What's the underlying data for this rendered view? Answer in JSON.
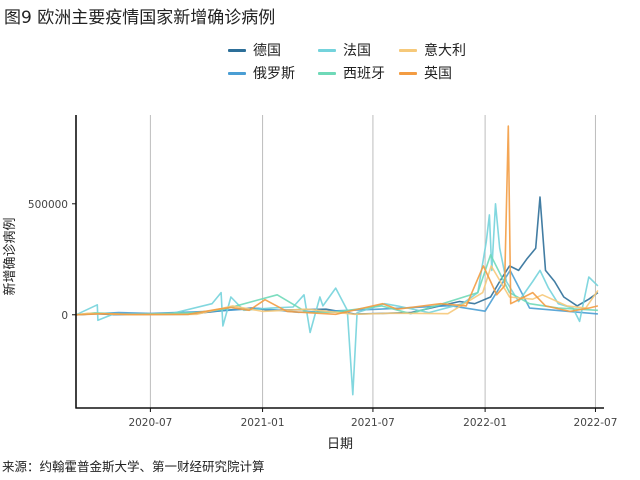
{
  "title": "图9 欧洲主要疫情国家新增确诊病例",
  "source": "来源：约翰霍普金斯大学、第一财经研究院计算",
  "chart_data": {
    "type": "line",
    "xlabel": "日期",
    "ylabel": "新增确诊病例",
    "xlim": [
      "2020-03-01",
      "2022-07-15"
    ],
    "ylim": [
      -420000,
      900000
    ],
    "x_ticks": [
      "2020-07-01",
      "2021-01-01",
      "2021-07-01",
      "2022-01-01",
      "2022-07-01"
    ],
    "x_tick_labels": [
      "2020-07",
      "2021-01",
      "2021-07",
      "2022-01",
      "2022-07"
    ],
    "y_ticks": [
      0,
      500000
    ],
    "y_tick_labels": [
      "0",
      "500000"
    ],
    "grid": "vertical",
    "legend_position": "top",
    "series": [
      {
        "name": "德国",
        "color": "#2d6f99",
        "points": [
          [
            "2020-03-01",
            0
          ],
          [
            "2020-04-01",
            5000
          ],
          [
            "2020-05-01",
            1000
          ],
          [
            "2020-09-01",
            2000
          ],
          [
            "2020-11-01",
            20000
          ],
          [
            "2020-12-15",
            30000
          ],
          [
            "2021-01-15",
            20000
          ],
          [
            "2021-04-15",
            25000
          ],
          [
            "2021-06-01",
            3000
          ],
          [
            "2021-09-01",
            10000
          ],
          [
            "2021-11-20",
            60000
          ],
          [
            "2021-12-15",
            50000
          ],
          [
            "2022-01-10",
            80000
          ],
          [
            "2022-01-25",
            150000
          ],
          [
            "2022-02-10",
            220000
          ],
          [
            "2022-02-25",
            200000
          ],
          [
            "2022-03-10",
            250000
          ],
          [
            "2022-03-25",
            300000
          ],
          [
            "2022-04-01",
            530000
          ],
          [
            "2022-04-10",
            200000
          ],
          [
            "2022-04-25",
            150000
          ],
          [
            "2022-05-10",
            80000
          ],
          [
            "2022-06-01",
            40000
          ],
          [
            "2022-06-20",
            70000
          ],
          [
            "2022-07-05",
            100000
          ]
        ]
      },
      {
        "name": "俄罗斯",
        "color": "#4a9ed4",
        "points": [
          [
            "2020-03-01",
            0
          ],
          [
            "2020-05-10",
            10000
          ],
          [
            "2020-07-01",
            6000
          ],
          [
            "2020-10-15",
            16000
          ],
          [
            "2020-12-25",
            29000
          ],
          [
            "2021-03-01",
            11000
          ],
          [
            "2021-07-10",
            25000
          ],
          [
            "2021-11-05",
            41000
          ],
          [
            "2022-01-01",
            16000
          ],
          [
            "2022-02-11",
            200000
          ],
          [
            "2022-03-15",
            30000
          ],
          [
            "2022-07-05",
            4000
          ]
        ]
      },
      {
        "name": "法国",
        "color": "#74d3dc",
        "points": [
          [
            "2020-03-01",
            0
          ],
          [
            "2020-04-05",
            45000
          ],
          [
            "2020-04-06",
            -25000
          ],
          [
            "2020-05-01",
            3000
          ],
          [
            "2020-08-01",
            3000
          ],
          [
            "2020-10-10",
            50000
          ],
          [
            "2020-10-25",
            100000
          ],
          [
            "2020-10-28",
            -50000
          ],
          [
            "2020-11-10",
            80000
          ],
          [
            "2020-12-01",
            20000
          ],
          [
            "2021-01-15",
            30000
          ],
          [
            "2021-02-20",
            35000
          ],
          [
            "2021-03-10",
            90000
          ],
          [
            "2021-03-20",
            -80000
          ],
          [
            "2021-04-05",
            80000
          ],
          [
            "2021-04-10",
            40000
          ],
          [
            "2021-05-01",
            120000
          ],
          [
            "2021-05-20",
            20000
          ],
          [
            "2021-05-29",
            -360000
          ],
          [
            "2021-06-05",
            10000
          ],
          [
            "2021-07-20",
            50000
          ],
          [
            "2021-08-10",
            40000
          ],
          [
            "2021-10-01",
            10000
          ],
          [
            "2021-11-25",
            50000
          ],
          [
            "2021-12-20",
            100000
          ],
          [
            "2022-01-03",
            330000
          ],
          [
            "2022-01-08",
            450000
          ],
          [
            "2022-01-12",
            200000
          ],
          [
            "2022-01-18",
            500000
          ],
          [
            "2022-01-25",
            300000
          ],
          [
            "2022-02-05",
            150000
          ],
          [
            "2022-02-25",
            60000
          ],
          [
            "2022-03-20",
            150000
          ],
          [
            "2022-04-01",
            200000
          ],
          [
            "2022-04-15",
            120000
          ],
          [
            "2022-05-01",
            50000
          ],
          [
            "2022-05-25",
            30000
          ],
          [
            "2022-06-05",
            -30000
          ],
          [
            "2022-06-20",
            170000
          ],
          [
            "2022-07-05",
            130000
          ]
        ]
      },
      {
        "name": "西班牙",
        "color": "#6fd9b8",
        "points": [
          [
            "2020-03-01",
            0
          ],
          [
            "2020-04-01",
            9000
          ],
          [
            "2020-06-01",
            1000
          ],
          [
            "2020-09-15",
            10000
          ],
          [
            "2020-10-30",
            25000
          ],
          [
            "2021-01-25",
            90000
          ],
          [
            "2021-03-15",
            10000
          ],
          [
            "2021-04-30",
            12000
          ],
          [
            "2021-07-15",
            40000
          ],
          [
            "2021-09-01",
            5000
          ],
          [
            "2021-12-20",
            100000
          ],
          [
            "2022-01-10",
            270000
          ],
          [
            "2022-02-10",
            100000
          ],
          [
            "2022-03-15",
            50000
          ],
          [
            "2022-05-01",
            30000
          ],
          [
            "2022-07-05",
            20000
          ]
        ]
      },
      {
        "name": "意大利",
        "color": "#f6c97a",
        "points": [
          [
            "2020-03-01",
            0
          ],
          [
            "2020-03-21",
            6500
          ],
          [
            "2020-06-01",
            500
          ],
          [
            "2020-09-15",
            2000
          ],
          [
            "2020-11-13",
            40000
          ],
          [
            "2021-01-01",
            15000
          ],
          [
            "2021-03-15",
            25000
          ],
          [
            "2021-06-01",
            2000
          ],
          [
            "2021-08-01",
            7000
          ],
          [
            "2021-11-01",
            5000
          ],
          [
            "2021-12-28",
            100000
          ],
          [
            "2022-01-11",
            220000
          ],
          [
            "2022-02-10",
            80000
          ],
          [
            "2022-03-20",
            70000
          ],
          [
            "2022-04-05",
            90000
          ],
          [
            "2022-05-15",
            40000
          ],
          [
            "2022-06-15",
            30000
          ],
          [
            "2022-07-05",
            110000
          ]
        ]
      },
      {
        "name": "英国",
        "color": "#f39c42",
        "points": [
          [
            "2020-03-01",
            0
          ],
          [
            "2020-04-15",
            5000
          ],
          [
            "2020-06-01",
            1000
          ],
          [
            "2020-09-01",
            2000
          ],
          [
            "2020-10-20",
            25000
          ],
          [
            "2020-11-10",
            33000
          ],
          [
            "2020-12-10",
            20000
          ],
          [
            "2021-01-05",
            68000
          ],
          [
            "2021-02-10",
            15000
          ],
          [
            "2021-05-01",
            2000
          ],
          [
            "2021-07-17",
            50000
          ],
          [
            "2021-08-10",
            25000
          ],
          [
            "2021-10-20",
            50000
          ],
          [
            "2021-12-01",
            40000
          ],
          [
            "2021-12-29",
            220000
          ],
          [
            "2022-01-10",
            150000
          ],
          [
            "2022-01-20",
            90000
          ],
          [
            "2022-02-02",
            130000
          ],
          [
            "2022-02-08",
            850000
          ],
          [
            "2022-02-12",
            50000
          ],
          [
            "2022-03-20",
            100000
          ],
          [
            "2022-04-10",
            40000
          ],
          [
            "2022-05-20",
            15000
          ],
          [
            "2022-06-20",
            30000
          ],
          [
            "2022-07-05",
            40000
          ]
        ]
      }
    ]
  }
}
